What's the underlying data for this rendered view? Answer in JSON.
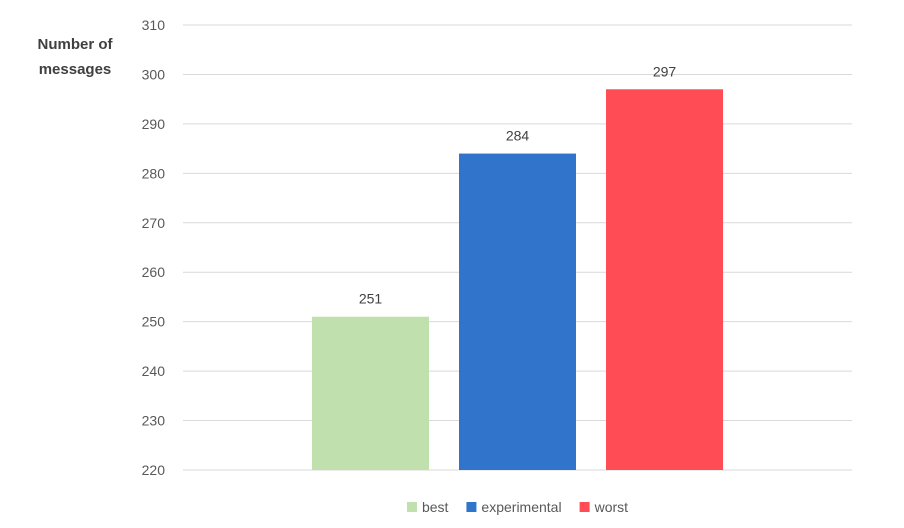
{
  "chart_data": {
    "type": "bar",
    "title": "",
    "ylabel_lines": [
      "Number of",
      "messages"
    ],
    "xlabel": "",
    "ylim": [
      220,
      310
    ],
    "yticks": [
      220,
      230,
      240,
      250,
      260,
      270,
      280,
      290,
      300,
      310
    ],
    "grid": true,
    "legend_position": "bottom",
    "series": [
      {
        "name": "best",
        "value": 251,
        "color": "#c0e0ad"
      },
      {
        "name": "experimental",
        "value": 284,
        "color": "#3174cc"
      },
      {
        "name": "worst",
        "value": 297,
        "color": "#ff4c55"
      }
    ]
  }
}
